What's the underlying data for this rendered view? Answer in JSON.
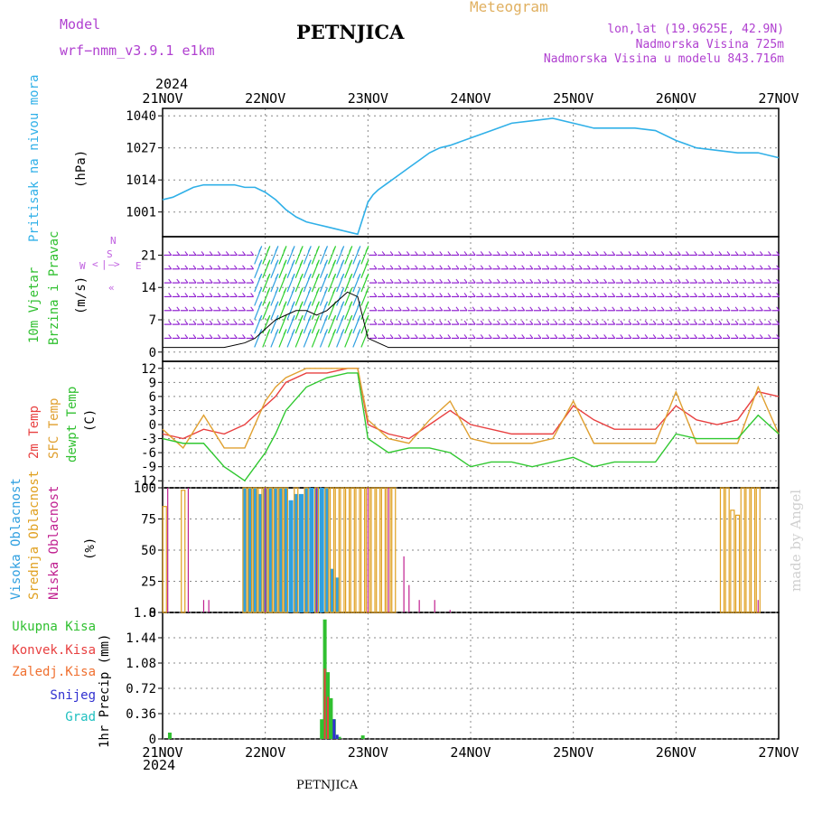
{
  "header": {
    "model_label": "Model",
    "model_name": "wrf−nmm_v3.9.1  e1km",
    "station": "PETNJICA",
    "title": "Meteogram",
    "lonlat": "lon,lat (19.9625E, 42.9N)",
    "altitude": "Nadmorska Visina 725m",
    "model_altitude": "Nadmorska Visina u modelu 843.716m"
  },
  "footer": {
    "station": "PETNJICA",
    "made_by": "made by Angel"
  },
  "colors": {
    "pressure": "#30b0e8",
    "temp2m": "#e84040",
    "sfc_temp": "#e0a030",
    "dewpt": "#30c830",
    "cloud_high": "#30a0e0",
    "cloud_mid": "#e0a020",
    "cloud_low": "#c02090",
    "precip_total": "#30c030",
    "precip_conv": "#e84040",
    "precip_frozen": "#f07030",
    "precip_snow": "#3030d0",
    "precip_hail": "#20c0c0",
    "wind_barb": "#9020d0"
  },
  "chart_data": [
    {
      "type": "line",
      "panel": "pressure",
      "ylabel_top": "Pritisak na nivou mora",
      "ylabel_unit": "(hPa)",
      "year": "2024",
      "x_ticks": [
        "21NOV",
        "22NOV",
        "23NOV",
        "24NOV",
        "25NOV",
        "26NOV",
        "27NOV"
      ],
      "x_range_days": [
        0,
        6
      ],
      "ylim": [
        991,
        1043
      ],
      "y_ticks": [
        1001,
        1014,
        1027,
        1040
      ],
      "series": [
        {
          "key": "pressure",
          "x": [
            0,
            0.1,
            0.2,
            0.3,
            0.4,
            0.5,
            0.6,
            0.7,
            0.8,
            0.9,
            1.0,
            1.1,
            1.2,
            1.3,
            1.4,
            1.5,
            1.6,
            1.7,
            1.8,
            1.9,
            2.0,
            2.05,
            2.1,
            2.2,
            2.3,
            2.4,
            2.5,
            2.6,
            2.7,
            2.8,
            3.0,
            3.2,
            3.4,
            3.6,
            3.8,
            4.0,
            4.2,
            4.4,
            4.6,
            4.8,
            5.0,
            5.2,
            5.4,
            5.6,
            5.8,
            6.0
          ],
          "y": [
            1006,
            1007,
            1009,
            1011,
            1012,
            1012,
            1012,
            1012,
            1011,
            1011,
            1009,
            1006,
            1002,
            999,
            997,
            996,
            995,
            994,
            993,
            992,
            1005,
            1008,
            1010,
            1013,
            1016,
            1019,
            1022,
            1025,
            1027,
            1028,
            1031,
            1034,
            1037,
            1038,
            1039,
            1037,
            1035,
            1035,
            1035,
            1034,
            1030,
            1027,
            1026,
            1025,
            1025,
            1023
          ]
        }
      ]
    },
    {
      "type": "line",
      "panel": "wind",
      "ylabel_left": "10m Vjetar",
      "ylabel_left2": "Brzina i Pravac",
      "ylabel_unit": "(m/s)",
      "direction_labels": [
        "W",
        "<",
        "|",
        "—",
        ">",
        "N",
        "«",
        "E",
        "S"
      ],
      "ylim": [
        -2,
        25
      ],
      "y_ticks": [
        0,
        7,
        14,
        21
      ],
      "barb_rows": [
        21,
        18,
        15,
        12,
        9,
        6,
        3
      ],
      "series": [
        {
          "key": "speed",
          "x": [
            0,
            0.2,
            0.4,
            0.6,
            0.8,
            0.9,
            1.0,
            1.1,
            1.2,
            1.3,
            1.4,
            1.5,
            1.6,
            1.7,
            1.8,
            1.9,
            2.0,
            2.1,
            2.2,
            2.4,
            2.6,
            2.8,
            3.0,
            3.2,
            3.4,
            3.6,
            3.8,
            4.0,
            4.5,
            5.0,
            5.5,
            6.0
          ],
          "y": [
            1,
            1,
            1,
            1,
            2,
            3,
            5,
            7,
            8,
            9,
            9,
            8,
            9,
            11,
            13,
            12,
            3,
            2,
            1,
            1,
            1,
            1,
            1,
            1,
            1,
            1,
            1,
            1,
            1,
            1,
            1,
            1
          ]
        }
      ]
    },
    {
      "type": "line",
      "panel": "temperature",
      "labels": [
        "2m Temp",
        "SFC Temp",
        "dewpt Temp"
      ],
      "ylabel_unit": "(C)",
      "ylim": [
        -13.5,
        13.5
      ],
      "y_ticks": [
        -12,
        -9,
        -6,
        -3,
        0,
        3,
        6,
        9,
        12
      ],
      "series": [
        {
          "key": "temp2m",
          "name": "2m Temp",
          "x": [
            0,
            0.2,
            0.4,
            0.6,
            0.8,
            1.0,
            1.1,
            1.2,
            1.4,
            1.6,
            1.8,
            1.9,
            2.0,
            2.2,
            2.4,
            2.6,
            2.8,
            3.0,
            3.2,
            3.4,
            3.6,
            3.8,
            4.0,
            4.2,
            4.4,
            4.6,
            4.8,
            5.0,
            5.2,
            5.4,
            5.6,
            5.8,
            6.0
          ],
          "y": [
            -2,
            -3,
            -1,
            -2,
            0,
            4,
            6,
            9,
            11,
            11,
            12,
            12,
            0,
            -2,
            -3,
            0,
            3,
            0,
            -1,
            -2,
            -2,
            -2,
            4,
            1,
            -1,
            -1,
            -1,
            4,
            1,
            0,
            1,
            7,
            6
          ]
        },
        {
          "key": "sfc",
          "name": "SFC Temp",
          "x": [
            0,
            0.2,
            0.4,
            0.6,
            0.8,
            1.0,
            1.1,
            1.2,
            1.4,
            1.6,
            1.8,
            1.9,
            2.0,
            2.2,
            2.4,
            2.6,
            2.8,
            3.0,
            3.2,
            3.4,
            3.6,
            3.8,
            4.0,
            4.2,
            4.4,
            4.6,
            4.8,
            5.0,
            5.2,
            5.4,
            5.6,
            5.8,
            6.0
          ],
          "y": [
            -1,
            -5,
            2,
            -5,
            -5,
            5,
            8,
            10,
            12,
            12,
            12,
            12,
            1,
            -3,
            -4,
            1,
            5,
            -3,
            -4,
            -4,
            -4,
            -3,
            5,
            -4,
            -4,
            -4,
            -4,
            7,
            -4,
            -4,
            -4,
            8,
            -2
          ]
        },
        {
          "key": "dewpt",
          "name": "dewpt Temp",
          "x": [
            0,
            0.2,
            0.4,
            0.6,
            0.8,
            1.0,
            1.1,
            1.2,
            1.4,
            1.6,
            1.8,
            1.9,
            2.0,
            2.2,
            2.4,
            2.6,
            2.8,
            3.0,
            3.2,
            3.4,
            3.6,
            3.8,
            4.0,
            4.2,
            4.4,
            4.6,
            4.8,
            5.0,
            5.2,
            5.4,
            5.6,
            5.8,
            6.0
          ],
          "y": [
            -3,
            -4,
            -4,
            -9,
            -12,
            -6,
            -2,
            3,
            8,
            10,
            11,
            11,
            -3,
            -6,
            -5,
            -5,
            -6,
            -9,
            -8,
            -8,
            -9,
            -8,
            -7,
            -9,
            -8,
            -8,
            -8,
            -2,
            -3,
            -3,
            -3,
            2,
            -2
          ]
        }
      ]
    },
    {
      "type": "bar",
      "panel": "clouds",
      "labels": [
        "Visoka Oblacnost",
        "Srednja Oblacnost",
        "Niska  Oblacnost"
      ],
      "ylabel_unit": "(%)",
      "ylim": [
        0,
        100
      ],
      "y_ticks": [
        0,
        25,
        50,
        75,
        100
      ],
      "high": {
        "x": [
          0.8,
          0.85,
          0.9,
          0.95,
          1.0,
          1.05,
          1.1,
          1.15,
          1.2,
          1.25,
          1.3,
          1.35,
          1.4,
          1.45,
          1.5,
          1.55,
          1.6,
          1.65,
          1.7
        ],
        "y": [
          100,
          100,
          100,
          95,
          100,
          100,
          100,
          100,
          100,
          90,
          95,
          95,
          100,
          100,
          100,
          100,
          100,
          35,
          28
        ]
      },
      "mid": {
        "x": [
          0.02,
          0.2,
          0.8,
          0.85,
          0.9,
          0.95,
          1.0,
          1.05,
          1.1,
          1.15,
          1.2,
          1.3,
          1.4,
          1.5,
          1.6,
          1.65,
          1.7,
          1.75,
          1.8,
          1.85,
          1.9,
          1.95,
          2.0,
          2.05,
          2.1,
          2.15,
          2.2,
          2.25,
          5.45,
          5.5,
          5.55,
          5.6,
          5.65,
          5.7,
          5.75,
          5.8
        ],
        "y": [
          85,
          98,
          100,
          100,
          100,
          100,
          100,
          100,
          100,
          100,
          100,
          100,
          100,
          100,
          100,
          100,
          100,
          100,
          100,
          100,
          100,
          100,
          100,
          100,
          100,
          100,
          100,
          100,
          100,
          100,
          82,
          78,
          100,
          100,
          100,
          100
        ]
      },
      "low": {
        "x": [
          0.05,
          0.25,
          0.4,
          0.45,
          1.0,
          1.5,
          2.0,
          2.2,
          2.35,
          2.4,
          2.5,
          2.65,
          2.8,
          5.8
        ],
        "y": [
          100,
          100,
          10,
          10,
          100,
          100,
          100,
          100,
          45,
          22,
          10,
          10,
          2,
          10
        ]
      }
    },
    {
      "type": "bar",
      "panel": "precip",
      "legend": [
        "Ukupna  Kisa",
        "Konvek.Kisa",
        "Zaledj.Kisa",
        "Snijeg",
        "Grad"
      ],
      "ylabel_unit": "1hr Precip (mm)",
      "ylim": [
        0,
        1.8
      ],
      "y_ticks": [
        0,
        0.36,
        0.72,
        1.08,
        1.44,
        1.8
      ],
      "x_ticks_bottom": [
        "21NOV",
        "22NOV",
        "23NOV",
        "24NOV",
        "25NOV",
        "26NOV",
        "27NOV"
      ],
      "year": "2024",
      "total": {
        "x": [
          0.07,
          1.55,
          1.58,
          1.61,
          1.64,
          1.67,
          1.72,
          1.95
        ],
        "y": [
          0.09,
          0.28,
          1.7,
          0.95,
          0.58,
          0.28,
          0.03,
          0.05
        ]
      },
      "convective": {
        "x": [
          1.58,
          1.61
        ],
        "y": [
          1.0,
          0.6
        ]
      },
      "snow": {
        "x": [
          1.67,
          1.7
        ],
        "y": [
          0.28,
          0.06
        ]
      }
    }
  ]
}
